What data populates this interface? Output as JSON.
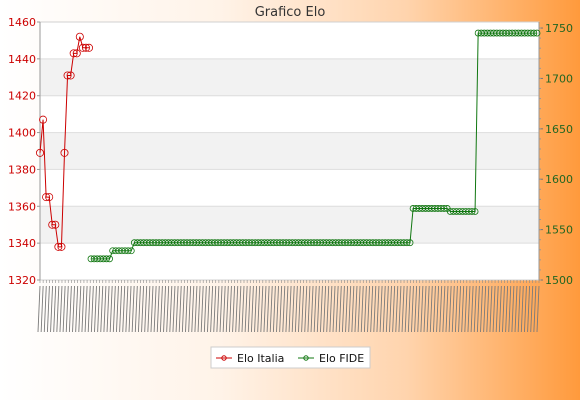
{
  "chart_data": {
    "type": "line",
    "title": "Grafico Elo",
    "legend_position": "bottom",
    "grid": true,
    "y_left": {
      "ticks": [
        1320,
        1340,
        1360,
        1380,
        1400,
        1420,
        1440,
        1460
      ],
      "range": [
        1320,
        1460
      ],
      "color": "#cc0000"
    },
    "y_right": {
      "ticks": [
        1500,
        1550,
        1600,
        1650,
        1700,
        1750
      ],
      "range": [
        1500,
        1756
      ],
      "color": "#226622"
    },
    "series": [
      {
        "name": "Elo Italia",
        "axis": "left",
        "color": "#cc0000",
        "values": [
          1389,
          1407,
          1365,
          1365,
          1350,
          1350,
          1338,
          1338,
          1389,
          1431,
          1431,
          1443,
          1443,
          1452,
          1446,
          1446,
          1446
        ]
      },
      {
        "name": "Elo FIDE",
        "axis": "right",
        "color": "#117711",
        "segments": [
          {
            "count": 7,
            "value": 1521
          },
          {
            "count": 7,
            "value": 1529
          },
          {
            "count": 90,
            "value": 1537
          },
          {
            "count": 12,
            "value": 1571
          },
          {
            "count": 9,
            "value": 1568
          },
          {
            "count": 20,
            "value": 1745
          }
        ]
      }
    ]
  }
}
